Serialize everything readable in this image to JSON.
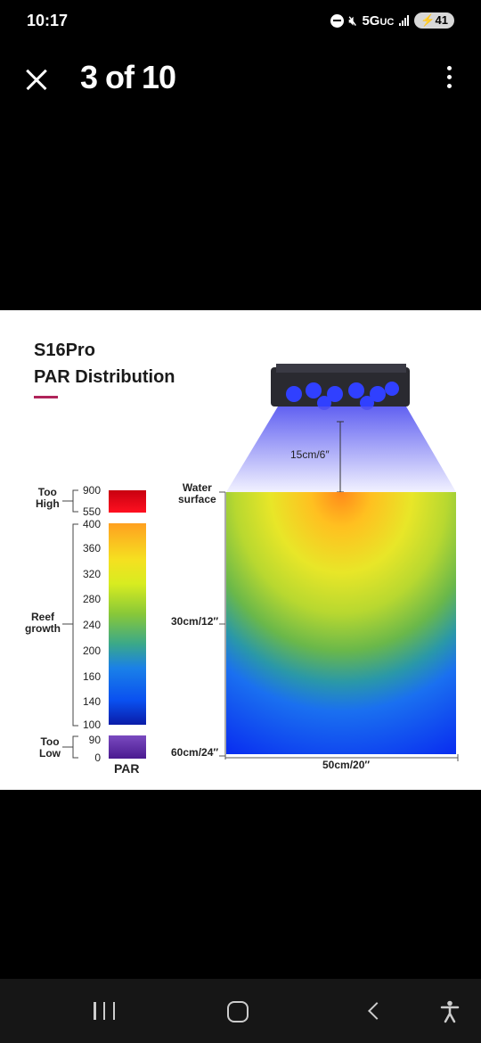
{
  "status": {
    "time": "10:17",
    "network": "5G",
    "network_suffix": "UC",
    "battery": "41"
  },
  "header": {
    "counter": "3 of 10"
  },
  "figure": {
    "title": "S16Pro",
    "subtitle": "PAR Distribution",
    "scale": {
      "label": "PAR",
      "zones": [
        {
          "label": "Too\nHigh",
          "ticks": [
            "900",
            "550"
          ],
          "color": "#e00000"
        },
        {
          "label": "Reef\ngrowth",
          "ticks": [
            "400",
            "360",
            "320",
            "280",
            "240",
            "200",
            "160",
            "140",
            "100"
          ]
        },
        {
          "label": "Too\nLow",
          "ticks": [
            "90",
            "0"
          ],
          "color": "#6a3aa8"
        }
      ]
    },
    "water_surface": "Water\nsurface",
    "distance_label": "15cm/6″",
    "depth_mid": "30cm/12″",
    "depth_bottom": "60cm/24″",
    "width_label": "50cm/20″"
  }
}
